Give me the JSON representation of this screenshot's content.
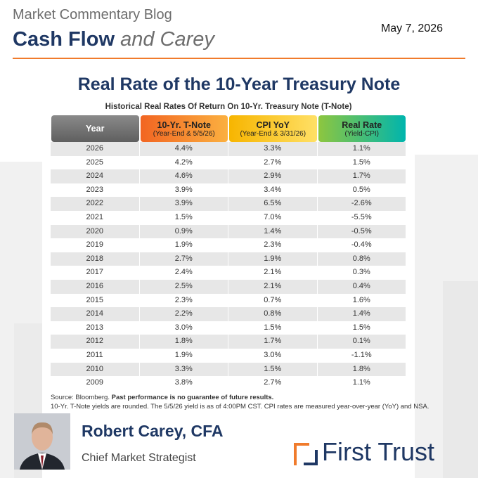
{
  "header": {
    "blog_name": "Market Commentary Blog",
    "brand_main": "Cash Flow",
    "brand_tail": "and Carey",
    "date": "May 7, 2026"
  },
  "title": "Real Rate of the 10-Year Treasury Note",
  "table": {
    "caption": "Historical Real Rates Of Return On 10-Yr. Treasury Note (T-Note)",
    "columns": [
      {
        "title": "Year"
      },
      {
        "title": "10-Yr. T-Note",
        "subtitle": "(Year-End & 5/5/26)"
      },
      {
        "title": "CPI YoY",
        "subtitle": "(Year-End & 3/31/26)"
      },
      {
        "title": "Real Rate",
        "subtitle": "(Yield-CPI)"
      }
    ],
    "rows": [
      [
        "2026",
        "4.4%",
        "3.3%",
        "1.1%"
      ],
      [
        "2025",
        "4.2%",
        "2.7%",
        "1.5%"
      ],
      [
        "2024",
        "4.6%",
        "2.9%",
        "1.7%"
      ],
      [
        "2023",
        "3.9%",
        "3.4%",
        "0.5%"
      ],
      [
        "2022",
        "3.9%",
        "6.5%",
        "-2.6%"
      ],
      [
        "2021",
        "1.5%",
        "7.0%",
        "-5.5%"
      ],
      [
        "2020",
        "0.9%",
        "1.4%",
        "-0.5%"
      ],
      [
        "2019",
        "1.9%",
        "2.3%",
        "-0.4%"
      ],
      [
        "2018",
        "2.7%",
        "1.9%",
        "0.8%"
      ],
      [
        "2017",
        "2.4%",
        "2.1%",
        "0.3%"
      ],
      [
        "2016",
        "2.5%",
        "2.1%",
        "0.4%"
      ],
      [
        "2015",
        "2.3%",
        "0.7%",
        "1.6%"
      ],
      [
        "2014",
        "2.2%",
        "0.8%",
        "1.4%"
      ],
      [
        "2013",
        "3.0%",
        "1.5%",
        "1.5%"
      ],
      [
        "2012",
        "1.8%",
        "1.7%",
        "0.1%"
      ],
      [
        "2011",
        "1.9%",
        "3.0%",
        "-1.1%"
      ],
      [
        "2010",
        "3.3%",
        "1.5%",
        "1.8%"
      ],
      [
        "2009",
        "3.8%",
        "2.7%",
        "1.1%"
      ]
    ]
  },
  "footnotes": {
    "source": "Source: Bloomberg.",
    "disclaimer": "Past performance is no guarantee of future results.",
    "note": "10-Yr. T-Note yields are rounded. The 5/5/26 yield is as of 4:00PM CST. CPI rates are measured year-over-year (YoY) and NSA."
  },
  "author": {
    "name": "Robert Carey, CFA",
    "role": "Chief Market Strategist"
  },
  "logo": {
    "text": "First Trust"
  }
}
